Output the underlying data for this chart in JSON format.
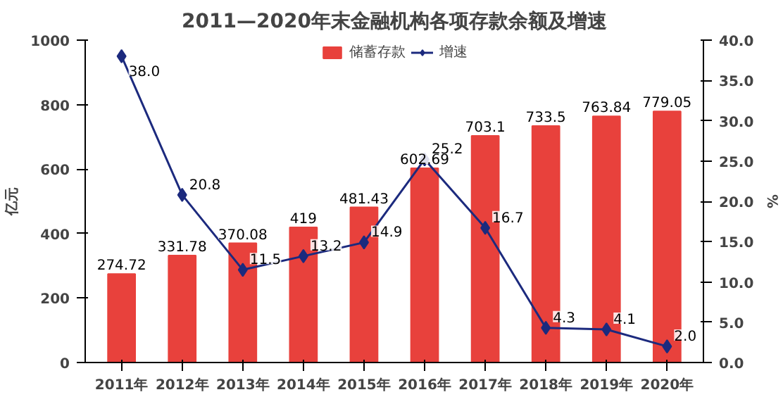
{
  "chart_data": {
    "type": "bar",
    "title": "2011—2020年末金融机构各项存款余额及增速",
    "categories": [
      "2011年",
      "2012年",
      "2013年",
      "2014年",
      "2015年",
      "2016年",
      "2017年",
      "2018年",
      "2019年",
      "2020年"
    ],
    "ylabel": "亿元",
    "y2label": "%",
    "ylim": [
      0,
      1000
    ],
    "yticks": [
      0,
      200,
      400,
      600,
      800,
      1000
    ],
    "y2lim": [
      0,
      40
    ],
    "y2ticks": [
      {
        "value": 0,
        "label": "0.0"
      },
      {
        "value": 5,
        "label": "5.0"
      },
      {
        "value": 10,
        "label": "10.0"
      },
      {
        "value": 15,
        "label": "15.0"
      },
      {
        "value": 20,
        "label": "20.0"
      },
      {
        "value": 25,
        "label": "25.0"
      },
      {
        "value": 30,
        "label": "30.0"
      },
      {
        "value": 35,
        "label": "35.0"
      },
      {
        "value": 40,
        "label": "40.0"
      }
    ],
    "legend": "top",
    "grid": false,
    "series": [
      {
        "name": "储蓄存款",
        "color": "#e8413c",
        "values": [
          274.72,
          331.78,
          370.08,
          419,
          481.43,
          602.69,
          703.1,
          733.5,
          763.84,
          779.05
        ],
        "value_labels": [
          "274.72",
          "331.78",
          "370.08",
          "419",
          "481.43",
          "602.69",
          "703.1",
          "733.5",
          "763.84",
          "779.05"
        ]
      },
      {
        "name": "增速",
        "type": "line",
        "axis": "y2",
        "marker": "diamond",
        "color": "#1c2a7e",
        "values": [
          38.0,
          20.8,
          11.5,
          13.2,
          14.9,
          25.2,
          16.7,
          4.3,
          4.1,
          2.0
        ],
        "value_labels": [
          "38.0",
          "20.8",
          "11.5",
          "13.2",
          "14.9",
          "25.2",
          "16.7",
          "4.3",
          "4.1",
          "2.0"
        ]
      }
    ]
  }
}
